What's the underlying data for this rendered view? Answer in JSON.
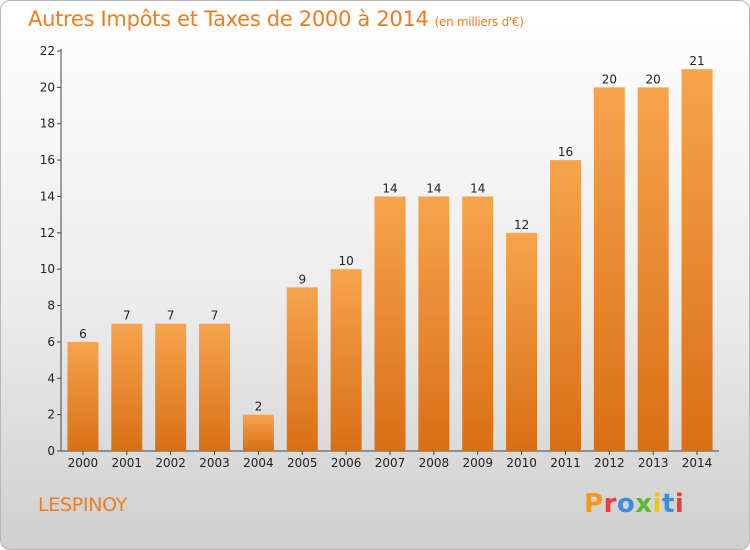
{
  "header": {
    "title": "Autres Impôts et Taxes de 2000 à 2014",
    "unit": "(en milliers d'€)"
  },
  "footer": {
    "location": "LESPINOY",
    "logo": "Proxiti",
    "logo_colors": [
      "#f29a1e",
      "#e83e3e",
      "#3a8fd8",
      "#5cb82e",
      "#f2c21e",
      "#3a8fd8",
      "#e83e3e"
    ]
  },
  "colors": {
    "bar_top": "#f7a44e",
    "bar_bottom": "#d96f14",
    "accent": "#ee7d1e"
  },
  "chart_data": {
    "type": "bar",
    "categories": [
      "2000",
      "2001",
      "2002",
      "2003",
      "2004",
      "2005",
      "2006",
      "2007",
      "2008",
      "2009",
      "2010",
      "2011",
      "2012",
      "2013",
      "2014"
    ],
    "values": [
      6,
      7,
      7,
      7,
      2,
      9,
      10,
      14,
      14,
      14,
      12,
      16,
      20,
      20,
      21
    ],
    "title": "Autres Impôts et Taxes de 2000 à 2014",
    "subtitle": "(en milliers d'€)",
    "ylim": [
      0,
      22
    ],
    "yticks": [
      0,
      2,
      4,
      6,
      8,
      10,
      12,
      14,
      16,
      18,
      20,
      22
    ],
    "grid": false,
    "data_labels": true
  }
}
